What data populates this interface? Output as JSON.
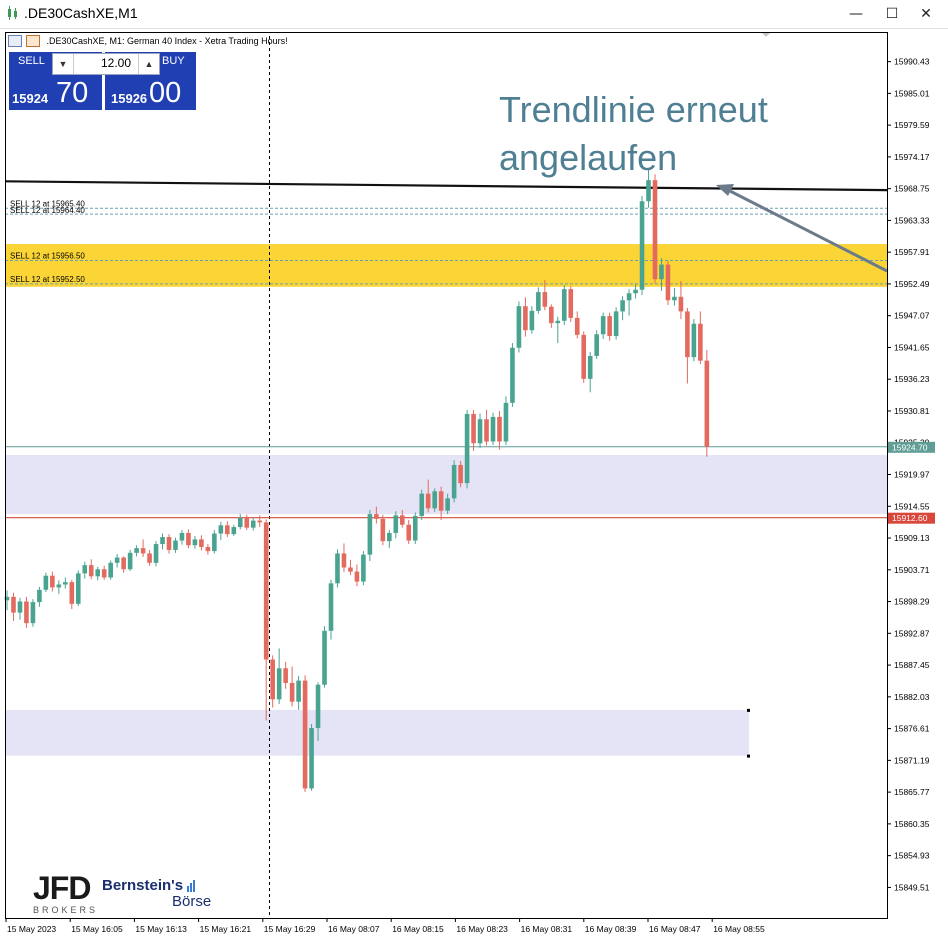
{
  "window": {
    "title": ".DE30CashXE,M1",
    "controls": {
      "minimize": "—",
      "maximize": "☐",
      "close": "✕"
    }
  },
  "chart_header": {
    "description": ".DE30CashXE, M1:  German 40 Index  - Xetra Trading Hours!"
  },
  "trade_panel": {
    "sell_label": "SELL",
    "buy_label": "BUY",
    "lot": "12.00",
    "sell_price_prefix": "15924",
    "sell_price_suffix": "70",
    "buy_price_prefix": "15926",
    "buy_price_suffix": "00",
    "color": "#1f3fb3"
  },
  "annotation": {
    "line1": "Trendlinie erneut",
    "line2": "angelaufen",
    "color": "#4e7f92"
  },
  "logos": {
    "jfd": "JFD",
    "jfd_sub": "BROKERS",
    "bernstein": "Bernstein's",
    "boerse": "Börse"
  },
  "chart_data": {
    "type": "candlestick",
    "symbol": ".DE30CashXE",
    "timeframe": "M1",
    "ylim": [
      15844.0,
      15995.0
    ],
    "y_ticks": [
      "15990.43",
      "15985.01",
      "15979.59",
      "15974.17",
      "15968.75",
      "15963.33",
      "15957.91",
      "15952.49",
      "15947.07",
      "15941.65",
      "15936.23",
      "15930.81",
      "15925.39",
      "15919.97",
      "15914.55",
      "15909.13",
      "15903.71",
      "15898.29",
      "15892.87",
      "15887.45",
      "15882.03",
      "15876.61",
      "15871.19",
      "15865.77",
      "15860.35",
      "15854.93",
      "15849.51"
    ],
    "x_labels": [
      "15 May 2023",
      "15 May 16:05",
      "15 May 16:13",
      "15 May 16:21",
      "15 May 16:29",
      "16 May 08:07",
      "16 May 08:15",
      "16 May 08:23",
      "16 May 08:31",
      "16 May 08:39",
      "16 May 08:47",
      "16 May 08:55"
    ],
    "current_bid": "15924.70",
    "reference_line": "15912.60",
    "order_levels": [
      {
        "label": "SELL 12 at 15965.40",
        "price": 15965.4
      },
      {
        "label": "SELL 12 at 15964.40",
        "price": 15964.4
      },
      {
        "label": "SELL 12 at 15956.50",
        "price": 15956.5
      },
      {
        "label": "SELL 12 at 15952.50",
        "price": 15952.5
      }
    ],
    "zones": [
      {
        "name": "resistance",
        "from": 15952.0,
        "to": 15959.3,
        "color": "#fbd536"
      },
      {
        "name": "support-upper",
        "from": 15913.2,
        "to": 15923.3,
        "color": "#e4e4f6"
      },
      {
        "name": "support-lower",
        "from": 15872.0,
        "to": 15879.8,
        "color": "#e4e4f6"
      }
    ],
    "trendline": {
      "from": 15970.0,
      "to": 15968.5
    },
    "colors": {
      "bull": "#4aa391",
      "bear": "#e36a5e",
      "bid_line": "#5f9d95",
      "ref_line": "#d64a3b",
      "ref_label_bg": "#d9473a",
      "bid_label_bg": "#5f9d95"
    },
    "candles": [
      [
        15898.5,
        15900.2,
        15896.8,
        15899.1
      ],
      [
        15899.1,
        15899.8,
        15895.0,
        15896.4
      ],
      [
        15896.4,
        15898.9,
        15895.2,
        15898.3
      ],
      [
        15898.3,
        15899.1,
        15893.8,
        15894.6
      ],
      [
        15894.6,
        15898.7,
        15894.0,
        15898.2
      ],
      [
        15898.2,
        15900.8,
        15897.4,
        15900.3
      ],
      [
        15900.3,
        15903.2,
        15899.9,
        15902.7
      ],
      [
        15902.7,
        15903.4,
        15900.0,
        15900.7
      ],
      [
        15900.7,
        15901.9,
        15899.6,
        15901.2
      ],
      [
        15901.2,
        15902.4,
        15900.5,
        15901.6
      ],
      [
        15901.6,
        15902.0,
        15897.0,
        15897.9
      ],
      [
        15897.9,
        15903.6,
        15897.5,
        15903.1
      ],
      [
        15903.1,
        15905.1,
        15902.2,
        15904.5
      ],
      [
        15904.5,
        15905.5,
        15902.1,
        15902.6
      ],
      [
        15902.6,
        15904.2,
        15901.9,
        15903.8
      ],
      [
        15903.8,
        15904.4,
        15902.0,
        15902.4
      ],
      [
        15902.4,
        15905.3,
        15902.0,
        15904.9
      ],
      [
        15904.9,
        15906.4,
        15904.1,
        15905.8
      ],
      [
        15905.8,
        15906.0,
        15903.2,
        15903.8
      ],
      [
        15903.8,
        15907.1,
        15903.5,
        15906.6
      ],
      [
        15906.6,
        15907.9,
        15906.0,
        15907.4
      ],
      [
        15907.4,
        15908.9,
        15905.9,
        15906.5
      ],
      [
        15906.5,
        15907.1,
        15904.4,
        15904.9
      ],
      [
        15904.9,
        15908.6,
        15904.3,
        15908.1
      ],
      [
        15908.1,
        15909.9,
        15907.2,
        15909.3
      ],
      [
        15909.3,
        15909.8,
        15906.5,
        15907.1
      ],
      [
        15907.1,
        15909.2,
        15906.6,
        15908.7
      ],
      [
        15908.7,
        15910.5,
        15908.0,
        15910.0
      ],
      [
        15910.0,
        15910.6,
        15907.4,
        15907.9
      ],
      [
        15907.9,
        15909.5,
        15907.3,
        15908.9
      ],
      [
        15908.9,
        15909.6,
        15907.0,
        15907.6
      ],
      [
        15907.6,
        15908.1,
        15906.3,
        15906.9
      ],
      [
        15906.9,
        15910.5,
        15906.5,
        15909.9
      ],
      [
        15909.9,
        15911.9,
        15908.8,
        15911.3
      ],
      [
        15911.3,
        15912.0,
        15909.3,
        15909.8
      ],
      [
        15909.8,
        15911.4,
        15909.5,
        15911.0
      ],
      [
        15911.0,
        15913.2,
        15910.6,
        15912.6
      ],
      [
        15912.6,
        15913.1,
        15910.5,
        15910.9
      ],
      [
        15910.9,
        15912.6,
        15910.4,
        15912.1
      ],
      [
        15912.1,
        15913.0,
        15911.0,
        15911.8
      ],
      [
        15911.8,
        15912.3,
        15878.0,
        15888.4
      ],
      [
        15888.4,
        15889.1,
        15880.2,
        15881.6
      ],
      [
        15881.6,
        15890.3,
        15880.8,
        15886.9
      ],
      [
        15886.9,
        15888.0,
        15883.4,
        15884.4
      ],
      [
        15884.4,
        15887.2,
        15880.4,
        15881.2
      ],
      [
        15881.2,
        15885.6,
        15879.8,
        15884.8
      ],
      [
        15884.8,
        15885.7,
        15865.8,
        15866.4
      ],
      [
        15866.4,
        15877.4,
        15866.0,
        15876.7
      ],
      [
        15876.7,
        15884.5,
        15874.5,
        15884.1
      ],
      [
        15884.1,
        15894.1,
        15883.6,
        15893.3
      ],
      [
        15893.3,
        15902.0,
        15891.8,
        15901.4
      ],
      [
        15901.4,
        15907.2,
        15900.7,
        15906.5
      ],
      [
        15906.5,
        15908.2,
        15903.3,
        15904.1
      ],
      [
        15904.1,
        15905.4,
        15902.8,
        15903.4
      ],
      [
        15903.4,
        15904.6,
        15900.9,
        15901.7
      ],
      [
        15901.7,
        15906.9,
        15901.1,
        15906.3
      ],
      [
        15906.3,
        15913.9,
        15905.2,
        15913.2
      ],
      [
        15913.2,
        15914.5,
        15911.6,
        15912.4
      ],
      [
        15912.4,
        15913.1,
        15907.9,
        15908.6
      ],
      [
        15908.6,
        15910.5,
        15907.4,
        15910.0
      ],
      [
        15910.0,
        15913.7,
        15909.1,
        15913.0
      ],
      [
        15913.0,
        15913.9,
        15910.9,
        15911.4
      ],
      [
        15911.4,
        15912.2,
        15908.1,
        15908.7
      ],
      [
        15908.7,
        15913.5,
        15908.1,
        15912.9
      ],
      [
        15912.9,
        15917.4,
        15912.2,
        15916.7
      ],
      [
        15916.7,
        15919.1,
        15913.5,
        15914.2
      ],
      [
        15914.2,
        15917.6,
        15913.6,
        15917.1
      ],
      [
        15917.1,
        15917.9,
        15912.2,
        15913.8
      ],
      [
        15913.8,
        15916.7,
        15913.2,
        15915.9
      ],
      [
        15915.9,
        15922.4,
        15915.2,
        15921.6
      ],
      [
        15921.6,
        15922.3,
        15917.8,
        15918.5
      ],
      [
        15918.5,
        15931.0,
        15917.6,
        15930.3
      ],
      [
        15930.3,
        15931.0,
        15924.0,
        15925.3
      ],
      [
        15925.3,
        15930.4,
        15924.5,
        15929.4
      ],
      [
        15929.4,
        15931.0,
        15924.9,
        15925.6
      ],
      [
        15925.6,
        15930.5,
        15925.0,
        15929.8
      ],
      [
        15929.8,
        15930.8,
        15924.2,
        15925.6
      ],
      [
        15925.6,
        15933.3,
        15925.0,
        15932.2
      ],
      [
        15932.2,
        15942.4,
        15931.5,
        15941.6
      ],
      [
        15941.6,
        15949.5,
        15940.8,
        15948.7
      ],
      [
        15948.7,
        15950.2,
        15943.5,
        15944.6
      ],
      [
        15944.6,
        15948.7,
        15944.0,
        15947.9
      ],
      [
        15947.9,
        15951.9,
        15947.4,
        15951.1
      ],
      [
        15951.1,
        15953.2,
        15948.0,
        15948.6
      ],
      [
        15948.6,
        15949.0,
        15945.0,
        15945.8
      ],
      [
        15945.8,
        15946.9,
        15942.4,
        15946.2
      ],
      [
        15946.2,
        15952.3,
        15945.5,
        15951.6
      ],
      [
        15951.6,
        15952.1,
        15946.0,
        15946.7
      ],
      [
        15946.7,
        15947.8,
        15943.2,
        15943.8
      ],
      [
        15943.8,
        15944.4,
        15935.6,
        15936.3
      ],
      [
        15936.3,
        15940.9,
        15934.0,
        15940.2
      ],
      [
        15940.2,
        15944.6,
        15939.7,
        15943.9
      ],
      [
        15943.9,
        15947.6,
        15943.1,
        15947.0
      ],
      [
        15947.0,
        15947.6,
        15942.8,
        15943.6
      ],
      [
        15943.6,
        15948.5,
        15943.0,
        15947.8
      ],
      [
        15947.8,
        15950.4,
        15946.3,
        15949.7
      ],
      [
        15949.7,
        15951.6,
        15947.1,
        15950.9
      ],
      [
        15950.9,
        15952.5,
        15950.0,
        15951.5
      ],
      [
        15951.5,
        15967.5,
        15950.6,
        15966.6
      ],
      [
        15966.6,
        15972.0,
        15965.5,
        15970.2
      ],
      [
        15970.2,
        15971.2,
        15952.6,
        15953.3
      ],
      [
        15953.3,
        15956.9,
        15951.3,
        15955.8
      ],
      [
        15955.8,
        15956.4,
        15948.9,
        15949.7
      ],
      [
        15949.7,
        15951.8,
        15948.8,
        15950.3
      ],
      [
        15950.3,
        15953.0,
        15946.5,
        15947.8
      ],
      [
        15947.8,
        15948.4,
        15935.5,
        15940.0
      ],
      [
        15940.0,
        15946.5,
        15939.3,
        15945.7
      ],
      [
        15945.7,
        15947.8,
        15938.8,
        15939.4
      ],
      [
        15939.4,
        15941.2,
        15923.0,
        15924.7
      ]
    ]
  }
}
